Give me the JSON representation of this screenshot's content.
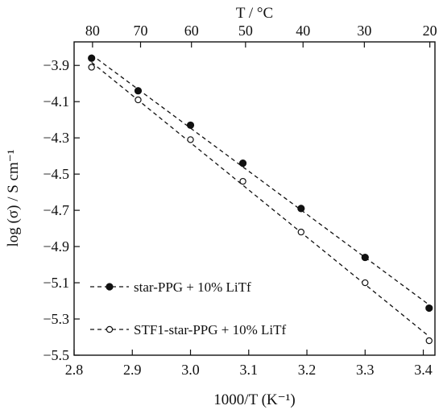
{
  "chart_data": {
    "type": "scatter",
    "xlabel": "1000/T (K⁻¹)",
    "ylabel": "log (σ) / S cm⁻¹",
    "top_xlabel": "T / °C",
    "xlim": [
      2.8,
      3.42
    ],
    "ylim": [
      -5.5,
      -3.77
    ],
    "x_ticks": [
      "2.8",
      "2.9",
      "3.0",
      "3.1",
      "3.2",
      "3.3",
      "3.4"
    ],
    "x_tick_values": [
      2.8,
      2.9,
      3.0,
      3.1,
      3.2,
      3.3,
      3.4
    ],
    "y_ticks": [
      "−3.9",
      "−4.1",
      "−4.3",
      "−4.5",
      "−4.7",
      "−4.9",
      "−5.1",
      "−5.3",
      "−5.5"
    ],
    "y_tick_values": [
      -3.9,
      -4.1,
      -4.3,
      -4.5,
      -4.7,
      -4.9,
      -5.1,
      -5.3,
      -5.5
    ],
    "top_ticks": [
      "80",
      "70",
      "60",
      "50",
      "40",
      "30",
      "20"
    ],
    "top_tick_celsius": [
      80,
      70,
      60,
      50,
      40,
      30,
      20
    ],
    "grid": false,
    "legend_position": "bottom-left",
    "series": [
      {
        "name": "star-PPG + 10% LiTf",
        "marker": "filled-circle",
        "line": "dashed",
        "x": [
          2.83,
          2.91,
          3.0,
          3.09,
          3.19,
          3.3,
          3.41
        ],
        "y": [
          -3.86,
          -4.04,
          -4.23,
          -4.44,
          -4.69,
          -4.96,
          -5.24
        ]
      },
      {
        "name": "STF1-star-PPG + 10% LiTf",
        "marker": "open-circle",
        "line": "dashed",
        "x": [
          2.83,
          2.91,
          3.0,
          3.09,
          3.19,
          3.3,
          3.41
        ],
        "y": [
          -3.91,
          -4.09,
          -4.31,
          -4.54,
          -4.82,
          -5.1,
          -5.42
        ]
      }
    ]
  }
}
